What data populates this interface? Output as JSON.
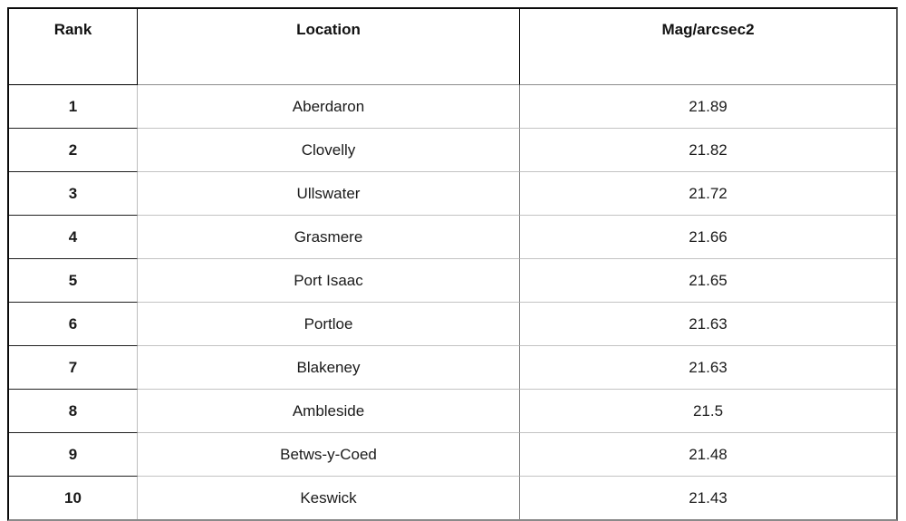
{
  "chart_data": {
    "type": "table",
    "columns": [
      "Rank",
      "Location",
      "Mag/arcsec2"
    ],
    "rows": [
      [
        1,
        "Aberdaron",
        21.89
      ],
      [
        2,
        "Clovelly",
        21.82
      ],
      [
        3,
        "Ullswater",
        21.72
      ],
      [
        4,
        "Grasmere",
        21.66
      ],
      [
        5,
        "Port Isaac",
        21.65
      ],
      [
        6,
        "Portloe",
        21.63
      ],
      [
        7,
        "Blakeney",
        21.63
      ],
      [
        8,
        "Ambleside",
        21.5
      ],
      [
        9,
        "Betws-y-Coed",
        21.48
      ],
      [
        10,
        "Keswick",
        21.43
      ]
    ]
  },
  "table": {
    "headers": {
      "rank": "Rank",
      "location": "Location",
      "mag": "Mag/arcsec2"
    },
    "rows": [
      {
        "rank": "1",
        "location": "Aberdaron",
        "mag": "21.89"
      },
      {
        "rank": "2",
        "location": "Clovelly",
        "mag": "21.82"
      },
      {
        "rank": "3",
        "location": "Ullswater",
        "mag": "21.72"
      },
      {
        "rank": "4",
        "location": "Grasmere",
        "mag": "21.66"
      },
      {
        "rank": "5",
        "location": "Port Isaac",
        "mag": "21.65"
      },
      {
        "rank": "6",
        "location": "Portloe",
        "mag": "21.63"
      },
      {
        "rank": "7",
        "location": "Blakeney",
        "mag": "21.63"
      },
      {
        "rank": "8",
        "location": "Ambleside",
        "mag": "21.5"
      },
      {
        "rank": "9",
        "location": "Betws-y-Coed",
        "mag": "21.48"
      },
      {
        "rank": "10",
        "location": "Keswick",
        "mag": "21.43"
      }
    ]
  },
  "colors": {
    "outer_border": "#0a0a0a",
    "header_cell_border": "#000000",
    "header_underline_gray": "#8c8c8c",
    "rank_row_divider": "#1f1f1f",
    "row_divider_gray": "#c3c3c3",
    "rank_column_divider": "#bdbdbd",
    "value_column_divider": "#7d7d7d",
    "text": "#1a1a1a",
    "background": "#ffffff"
  }
}
